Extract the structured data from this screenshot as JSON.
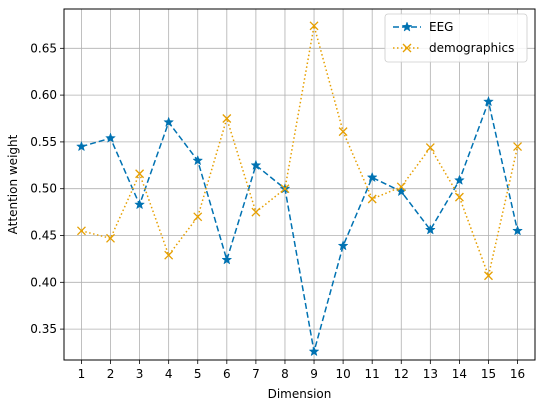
{
  "chart_data": {
    "type": "line",
    "title": "",
    "xlabel": "Dimension",
    "ylabel": "Attention weight",
    "x": [
      1,
      2,
      3,
      4,
      5,
      6,
      7,
      8,
      9,
      10,
      11,
      12,
      13,
      14,
      15,
      16
    ],
    "xticks": [
      "1",
      "2",
      "3",
      "4",
      "5",
      "6",
      "7",
      "8",
      "9",
      "10",
      "11",
      "12",
      "13",
      "14",
      "15",
      "16"
    ],
    "yticks": [
      "0.35",
      "0.40",
      "0.45",
      "0.50",
      "0.55",
      "0.60",
      "0.65"
    ],
    "xlim": [
      0.4,
      16.6
    ],
    "ylim": [
      0.317,
      0.692
    ],
    "grid": true,
    "legend_position": "top-right",
    "series": [
      {
        "name": "EEG",
        "color": "#0072B2",
        "line_style": "dashed",
        "marker": "star",
        "values": [
          0.545,
          0.554,
          0.483,
          0.571,
          0.53,
          0.424,
          0.525,
          0.5,
          0.326,
          0.439,
          0.512,
          0.497,
          0.456,
          0.509,
          0.593,
          0.455
        ]
      },
      {
        "name": "demographics",
        "color": "#E69F00",
        "line_style": "dotted",
        "marker": "x",
        "values": [
          0.455,
          0.447,
          0.516,
          0.429,
          0.47,
          0.575,
          0.475,
          0.5,
          0.674,
          0.561,
          0.489,
          0.502,
          0.544,
          0.491,
          0.407,
          0.545
        ]
      }
    ]
  }
}
